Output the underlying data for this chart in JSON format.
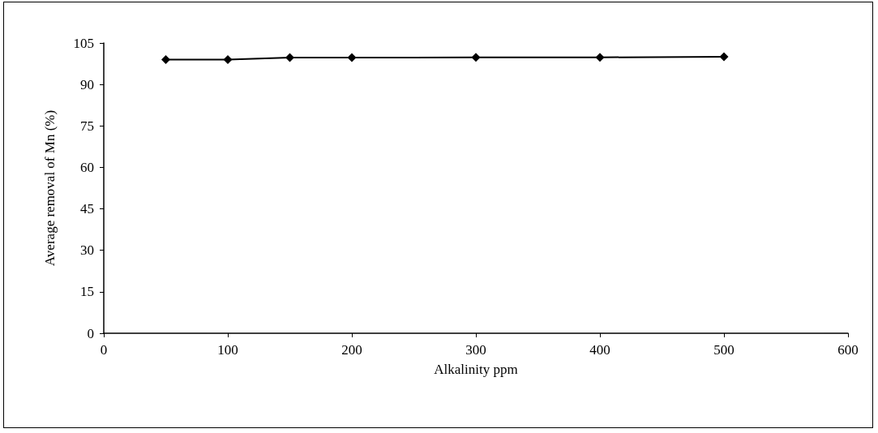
{
  "chart_data": {
    "type": "line",
    "xlabel": "Alkalinity ppm",
    "ylabel": "Average removal of Mn (%)",
    "x": [
      50,
      100,
      150,
      200,
      300,
      400,
      500
    ],
    "series": [
      {
        "color": "#000000",
        "values": [
          99,
          99,
          99.7,
          99.7,
          99.8,
          99.8,
          100
        ]
      }
    ],
    "xlim": [
      0,
      600
    ],
    "xticks": [
      0,
      100,
      200,
      300,
      400,
      500,
      600
    ],
    "ylim": [
      0,
      105
    ],
    "yticks": [
      0,
      15,
      30,
      45,
      60,
      75,
      90,
      105
    ],
    "grid": false,
    "marker": "diamond",
    "line_style": "solid"
  }
}
